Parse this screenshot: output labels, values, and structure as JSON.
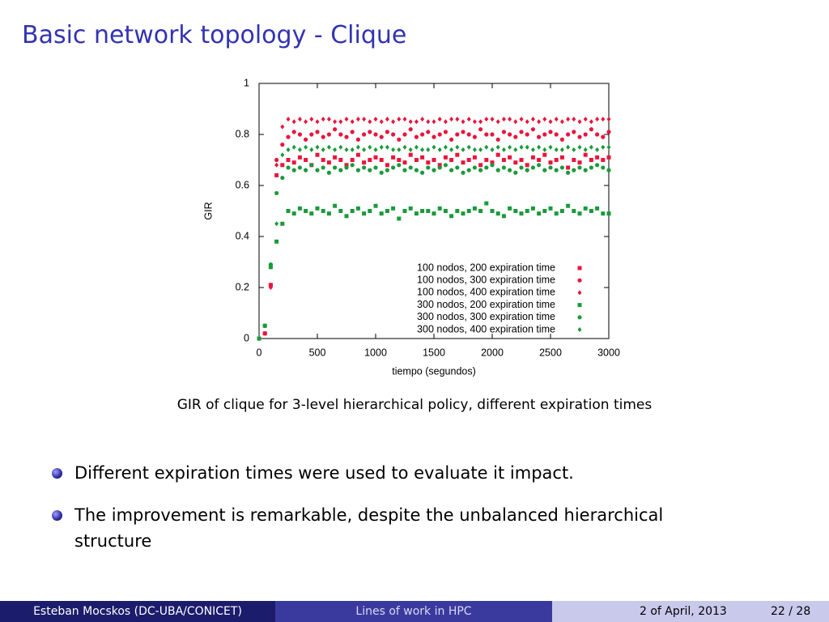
{
  "slide": {
    "title": "Basic network topology - Clique",
    "caption": "GIR of clique for 3-level hierarchical policy, different expiration times",
    "bullets": [
      "Different expiration times were used to evaluate it impact.",
      "The improvement is remarkable, despite the unbalanced hierarchical structure"
    ],
    "footer": {
      "author": "Esteban Mocskos  (DC-UBA/CONICET)",
      "talk": "Lines of work in HPC",
      "date": "2 of April, 2013",
      "page": "22 / 28"
    }
  },
  "chart_data": {
    "type": "scatter",
    "x_label": "tiempo (segundos)",
    "y_label": "GIR",
    "xlim": [
      0,
      3000
    ],
    "ylim": [
      0,
      1
    ],
    "xticks": [
      0,
      500,
      1000,
      1500,
      2000,
      2500,
      3000
    ],
    "yticks": [
      0,
      0.2,
      0.4,
      0.6,
      0.8,
      1
    ],
    "legend": "lower right",
    "x": [
      0,
      50,
      100,
      150,
      200,
      250,
      300,
      350,
      400,
      450,
      500,
      550,
      600,
      650,
      700,
      750,
      800,
      850,
      900,
      950,
      1000,
      1050,
      1100,
      1150,
      1200,
      1250,
      1300,
      1350,
      1400,
      1450,
      1500,
      1550,
      1600,
      1650,
      1700,
      1750,
      1800,
      1850,
      1900,
      1950,
      2000,
      2050,
      2100,
      2150,
      2200,
      2250,
      2300,
      2350,
      2400,
      2450,
      2500,
      2550,
      2600,
      2650,
      2700,
      2750,
      2800,
      2850,
      2900,
      2950,
      3000
    ],
    "series": [
      {
        "name": "100 nodos, 200 expiration time",
        "color": "#e8163c",
        "marker": "square",
        "values": [
          0,
          0.02,
          0.21,
          0.64,
          0.68,
          0.7,
          0.69,
          0.71,
          0.7,
          0.68,
          0.72,
          0.7,
          0.69,
          0.71,
          0.7,
          0.68,
          0.7,
          0.72,
          0.69,
          0.7,
          0.71,
          0.7,
          0.68,
          0.71,
          0.7,
          0.69,
          0.72,
          0.7,
          0.71,
          0.69,
          0.7,
          0.68,
          0.71,
          0.7,
          0.72,
          0.69,
          0.7,
          0.71,
          0.68,
          0.7,
          0.69,
          0.72,
          0.7,
          0.71,
          0.69,
          0.7,
          0.68,
          0.71,
          0.7,
          0.72,
          0.69,
          0.7,
          0.71,
          0.67,
          0.7,
          0.69,
          0.72,
          0.7,
          0.71,
          0.7,
          0.71
        ]
      },
      {
        "name": "100 nodos, 300 expiration time",
        "color": "#e8163c",
        "marker": "circle",
        "values": [
          0,
          0.02,
          0.21,
          0.7,
          0.76,
          0.79,
          0.81,
          0.8,
          0.78,
          0.8,
          0.81,
          0.79,
          0.8,
          0.82,
          0.8,
          0.79,
          0.81,
          0.78,
          0.8,
          0.81,
          0.8,
          0.79,
          0.81,
          0.8,
          0.78,
          0.8,
          0.82,
          0.79,
          0.8,
          0.81,
          0.79,
          0.8,
          0.81,
          0.78,
          0.8,
          0.81,
          0.8,
          0.79,
          0.82,
          0.8,
          0.8,
          0.78,
          0.81,
          0.8,
          0.79,
          0.81,
          0.8,
          0.82,
          0.79,
          0.8,
          0.81,
          0.8,
          0.78,
          0.8,
          0.81,
          0.79,
          0.8,
          0.82,
          0.8,
          0.79,
          0.81
        ]
      },
      {
        "name": "100 nodos, 400 expiration time",
        "color": "#e8163c",
        "marker": "diamond",
        "values": [
          0,
          0.02,
          0.2,
          0.68,
          0.83,
          0.86,
          0.85,
          0.86,
          0.85,
          0.86,
          0.85,
          0.86,
          0.86,
          0.85,
          0.85,
          0.86,
          0.85,
          0.86,
          0.86,
          0.85,
          0.86,
          0.85,
          0.86,
          0.85,
          0.86,
          0.86,
          0.85,
          0.85,
          0.86,
          0.85,
          0.85,
          0.86,
          0.85,
          0.86,
          0.86,
          0.85,
          0.86,
          0.85,
          0.85,
          0.86,
          0.86,
          0.85,
          0.86,
          0.86,
          0.85,
          0.86,
          0.85,
          0.86,
          0.85,
          0.86,
          0.85,
          0.86,
          0.85,
          0.86,
          0.86,
          0.85,
          0.86,
          0.85,
          0.86,
          0.86,
          0.86
        ]
      },
      {
        "name": "300 nodos, 200 expiration time",
        "color": "#1a9a3a",
        "marker": "square",
        "values": [
          0,
          0.05,
          0.28,
          0.38,
          0.45,
          0.5,
          0.49,
          0.51,
          0.5,
          0.49,
          0.51,
          0.5,
          0.49,
          0.52,
          0.5,
          0.48,
          0.5,
          0.51,
          0.49,
          0.5,
          0.52,
          0.49,
          0.5,
          0.51,
          0.47,
          0.5,
          0.51,
          0.49,
          0.5,
          0.5,
          0.49,
          0.51,
          0.5,
          0.48,
          0.5,
          0.49,
          0.5,
          0.51,
          0.5,
          0.53,
          0.5,
          0.49,
          0.48,
          0.51,
          0.5,
          0.49,
          0.5,
          0.51,
          0.49,
          0.5,
          0.51,
          0.49,
          0.5,
          0.52,
          0.5,
          0.49,
          0.51,
          0.5,
          0.51,
          0.49,
          0.49
        ]
      },
      {
        "name": "300 nodos, 300 expiration time",
        "color": "#1a9a3a",
        "marker": "circle",
        "values": [
          0,
          0.05,
          0.29,
          0.57,
          0.63,
          0.67,
          0.66,
          0.67,
          0.66,
          0.68,
          0.66,
          0.67,
          0.65,
          0.67,
          0.66,
          0.67,
          0.68,
          0.66,
          0.67,
          0.66,
          0.67,
          0.65,
          0.66,
          0.67,
          0.68,
          0.66,
          0.67,
          0.66,
          0.65,
          0.67,
          0.66,
          0.67,
          0.68,
          0.66,
          0.67,
          0.65,
          0.66,
          0.67,
          0.66,
          0.67,
          0.68,
          0.66,
          0.67,
          0.66,
          0.65,
          0.67,
          0.66,
          0.67,
          0.68,
          0.66,
          0.67,
          0.66,
          0.67,
          0.65,
          0.66,
          0.67,
          0.66,
          0.67,
          0.68,
          0.67,
          0.66
        ]
      },
      {
        "name": "300 nodos, 400 expiration time",
        "color": "#1a9a3a",
        "marker": "diamond",
        "values": [
          0,
          0.05,
          0.28,
          0.45,
          0.72,
          0.74,
          0.75,
          0.74,
          0.75,
          0.74,
          0.75,
          0.74,
          0.75,
          0.74,
          0.75,
          0.74,
          0.74,
          0.75,
          0.74,
          0.75,
          0.74,
          0.75,
          0.75,
          0.74,
          0.74,
          0.75,
          0.74,
          0.75,
          0.74,
          0.74,
          0.75,
          0.74,
          0.75,
          0.74,
          0.75,
          0.74,
          0.75,
          0.74,
          0.74,
          0.75,
          0.74,
          0.75,
          0.74,
          0.75,
          0.74,
          0.75,
          0.75,
          0.74,
          0.75,
          0.74,
          0.75,
          0.74,
          0.74,
          0.75,
          0.74,
          0.75,
          0.74,
          0.75,
          0.74,
          0.75,
          0.75
        ]
      }
    ]
  }
}
